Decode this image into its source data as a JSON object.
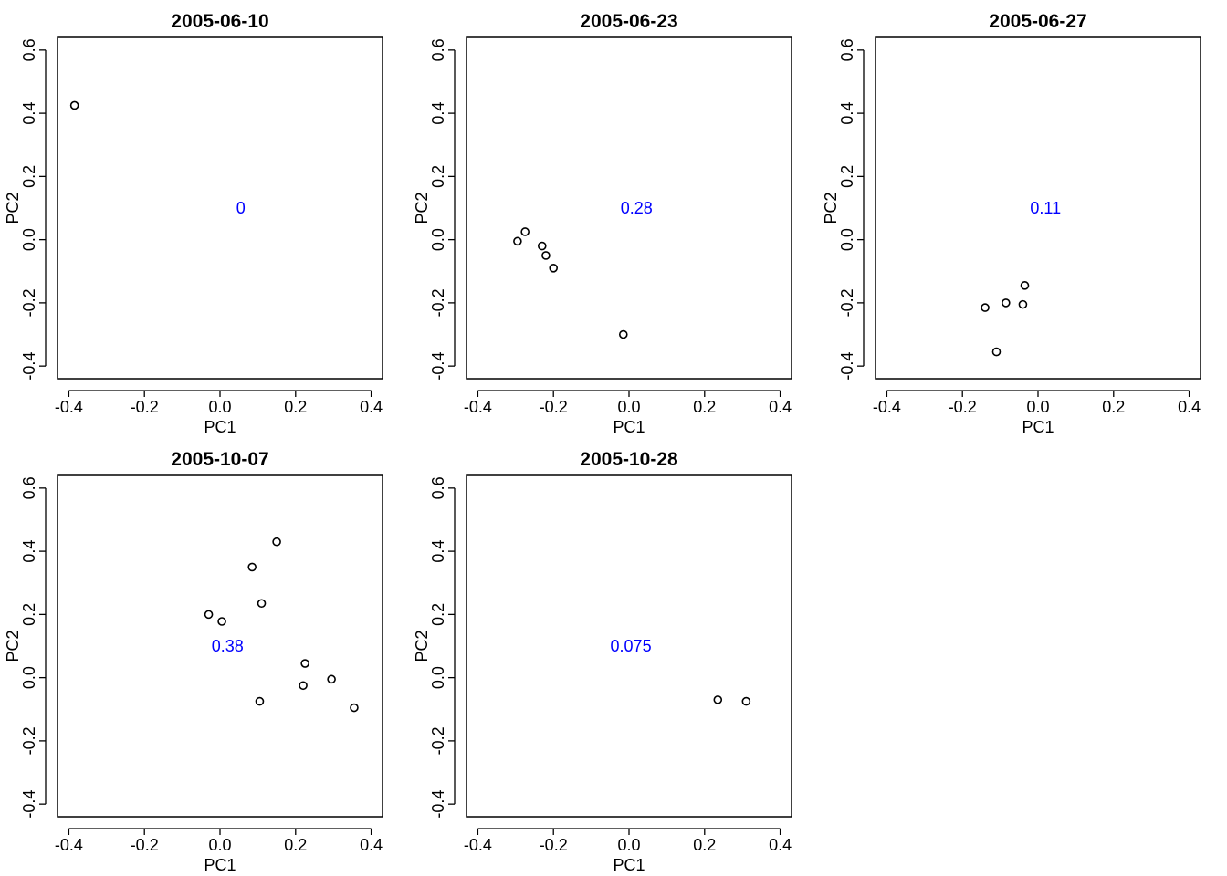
{
  "chart_data": [
    {
      "type": "scatter",
      "title": "2005-06-10",
      "xlabel": "PC1",
      "ylabel": "PC2",
      "xlim": [
        -0.43,
        0.43
      ],
      "ylim": [
        -0.44,
        0.64
      ],
      "xticks": [
        -0.4,
        -0.2,
        0.0,
        0.2,
        0.4
      ],
      "xtick_labels": [
        "-0.4",
        "-0.2",
        "0.0",
        "0.2",
        "0.4"
      ],
      "yticks": [
        -0.4,
        -0.2,
        0.0,
        0.2,
        0.4,
        0.6
      ],
      "ytick_labels": [
        "-0.4",
        "-0.2",
        "0.0",
        "0.2",
        "0.4",
        "0.6"
      ],
      "points": [
        [
          -0.385,
          0.425
        ]
      ],
      "annotation": {
        "text": "0",
        "x": 0.055,
        "y": 0.1
      },
      "annotation_color": "#0000ff",
      "grid": false
    },
    {
      "type": "scatter",
      "title": "2005-06-23",
      "xlabel": "PC1",
      "ylabel": "PC2",
      "xlim": [
        -0.43,
        0.43
      ],
      "ylim": [
        -0.44,
        0.64
      ],
      "xticks": [
        -0.4,
        -0.2,
        0.0,
        0.2,
        0.4
      ],
      "xtick_labels": [
        "-0.4",
        "-0.2",
        "0.0",
        "0.2",
        "0.4"
      ],
      "yticks": [
        -0.4,
        -0.2,
        0.0,
        0.2,
        0.4,
        0.6
      ],
      "ytick_labels": [
        "-0.4",
        "-0.2",
        "0.0",
        "0.2",
        "0.4",
        "0.6"
      ],
      "points": [
        [
          -0.295,
          -0.005
        ],
        [
          -0.275,
          0.025
        ],
        [
          -0.23,
          -0.02
        ],
        [
          -0.22,
          -0.05
        ],
        [
          -0.2,
          -0.09
        ],
        [
          -0.015,
          -0.3
        ]
      ],
      "annotation": {
        "text": "0.28",
        "x": 0.02,
        "y": 0.1
      },
      "annotation_color": "#0000ff",
      "grid": false
    },
    {
      "type": "scatter",
      "title": "2005-06-27",
      "xlabel": "PC1",
      "ylabel": "PC2",
      "xlim": [
        -0.43,
        0.43
      ],
      "ylim": [
        -0.44,
        0.64
      ],
      "xticks": [
        -0.4,
        -0.2,
        0.0,
        0.2,
        0.4
      ],
      "xtick_labels": [
        "-0.4",
        "-0.2",
        "0.0",
        "0.2",
        "0.4"
      ],
      "yticks": [
        -0.4,
        -0.2,
        0.0,
        0.2,
        0.4,
        0.6
      ],
      "ytick_labels": [
        "-0.4",
        "-0.2",
        "0.0",
        "0.2",
        "0.4",
        "0.6"
      ],
      "points": [
        [
          -0.14,
          -0.215
        ],
        [
          -0.085,
          -0.2
        ],
        [
          -0.04,
          -0.205
        ],
        [
          -0.035,
          -0.145
        ],
        [
          -0.11,
          -0.355
        ]
      ],
      "annotation": {
        "text": "0.11",
        "x": 0.02,
        "y": 0.1
      },
      "annotation_color": "#0000ff",
      "grid": false
    },
    {
      "type": "scatter",
      "title": "2005-10-07",
      "xlabel": "PC1",
      "ylabel": "PC2",
      "xlim": [
        -0.43,
        0.43
      ],
      "ylim": [
        -0.44,
        0.64
      ],
      "xticks": [
        -0.4,
        -0.2,
        0.0,
        0.2,
        0.4
      ],
      "xtick_labels": [
        "-0.4",
        "-0.2",
        "0.0",
        "0.2",
        "0.4"
      ],
      "yticks": [
        -0.4,
        -0.2,
        0.0,
        0.2,
        0.4,
        0.6
      ],
      "ytick_labels": [
        "-0.4",
        "-0.2",
        "0.0",
        "0.2",
        "0.4",
        "0.6"
      ],
      "points": [
        [
          -0.03,
          0.2
        ],
        [
          0.005,
          0.178
        ],
        [
          0.085,
          0.35
        ],
        [
          0.15,
          0.43
        ],
        [
          0.11,
          0.235
        ],
        [
          0.225,
          0.045
        ],
        [
          0.22,
          -0.025
        ],
        [
          0.295,
          -0.005
        ],
        [
          0.105,
          -0.075
        ],
        [
          0.355,
          -0.095
        ]
      ],
      "annotation": {
        "text": "0.38",
        "x": 0.02,
        "y": 0.1
      },
      "annotation_color": "#0000ff",
      "grid": false
    },
    {
      "type": "scatter",
      "title": "2005-10-28",
      "xlabel": "PC1",
      "ylabel": "PC2",
      "xlim": [
        -0.43,
        0.43
      ],
      "ylim": [
        -0.44,
        0.64
      ],
      "xticks": [
        -0.4,
        -0.2,
        0.0,
        0.2,
        0.4
      ],
      "xtick_labels": [
        "-0.4",
        "-0.2",
        "0.0",
        "0.2",
        "0.4"
      ],
      "yticks": [
        -0.4,
        -0.2,
        0.0,
        0.2,
        0.4,
        0.6
      ],
      "ytick_labels": [
        "-0.4",
        "-0.2",
        "0.0",
        "0.2",
        "0.4",
        "0.6"
      ],
      "points": [
        [
          0.235,
          -0.07
        ],
        [
          0.31,
          -0.075
        ]
      ],
      "annotation": {
        "text": "0.075",
        "x": 0.005,
        "y": 0.1
      },
      "annotation_color": "#0000ff",
      "grid": false
    }
  ]
}
